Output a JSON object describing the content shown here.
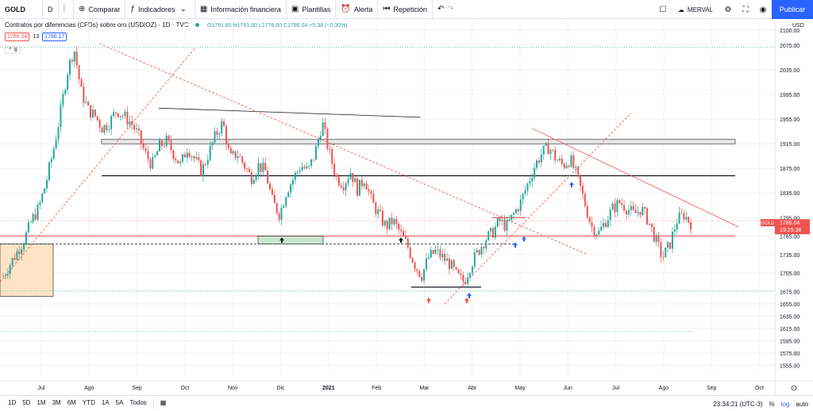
{
  "toolbar": {
    "symbol": "GOLD",
    "interval": "D",
    "compare": "Comparar",
    "indicators": "Indicadores",
    "financial": "Información financiera",
    "templates": "Plantillas",
    "alert": "Alerta",
    "replay": "Repetición",
    "merval": "MERVAL",
    "publish": "Publicar"
  },
  "legend": {
    "title": "Contratos por diferencias (CFDs) sobre oro (USD/OZ) · 1D · TVC",
    "values": "O1791.80 H1791.80 L1776.60 C1786.04 +5.38 (+0.30%)",
    "sell": "1786.04",
    "spread": "13",
    "buy": "1786.17",
    "collapse": "8"
  },
  "axis": {
    "currency": "USD",
    "price_labels": [
      "2100.00",
      "2075.00",
      "2035.00",
      "1995.00",
      "1955.00",
      "1915.00",
      "1875.00",
      "1835.00",
      "1795.00",
      "1765.00",
      "1735.00",
      "1705.00",
      "1675.00",
      "1655.00",
      "1635.00",
      "1615.00",
      "1595.00",
      "1575.00",
      "1555.00"
    ],
    "date_labels": [
      "Jul",
      "Ago",
      "Sep",
      "Oct",
      "Nov",
      "Dic",
      "2021",
      "Feb",
      "Mar",
      "Abr",
      "May",
      "Jun",
      "Jul",
      "Ago",
      "Sep",
      "Oct"
    ],
    "symbol_tag": "GOLD",
    "last_price": "1786.04",
    "countdown": "19:25:38"
  },
  "colors": {
    "up": "#26a69a",
    "down": "#ef5350",
    "accent": "#2962ff"
  },
  "chart_data": {
    "type": "candlestick",
    "ylim": [
      1540,
      2110
    ],
    "close_path": [
      1700,
      1720,
      1740,
      1760,
      1790,
      1810,
      1850,
      1900,
      1960,
      2030,
      2070,
      2000,
      1970,
      1960,
      1940,
      1950,
      1970,
      1960,
      1950,
      1930,
      1900,
      1880,
      1910,
      1920,
      1900,
      1880,
      1910,
      1890,
      1870,
      1900,
      1930,
      1950,
      1890,
      1900,
      1880,
      1860,
      1880,
      1870,
      1820,
      1800,
      1840,
      1860,
      1880,
      1870,
      1900,
      1950,
      1900,
      1860,
      1850,
      1870,
      1840,
      1860,
      1820,
      1800,
      1780,
      1790,
      1770,
      1750,
      1720,
      1700,
      1730,
      1740,
      1730,
      1720,
      1700,
      1690,
      1720,
      1740,
      1760,
      1770,
      1790,
      1780,
      1800,
      1820,
      1850,
      1880,
      1900,
      1910,
      1890,
      1880,
      1890,
      1860,
      1820,
      1780,
      1770,
      1790,
      1810,
      1820,
      1810,
      1800,
      1810,
      1790,
      1760,
      1730,
      1750,
      1790,
      1800,
      1786
    ]
  },
  "bottom": {
    "ranges": [
      "1D",
      "5D",
      "1M",
      "3M",
      "6M",
      "YTD",
      "1A",
      "5A",
      "Todos"
    ],
    "time": "23:34:21 (UTC-3)",
    "pct": "%",
    "log": "log",
    "auto": "auto"
  }
}
